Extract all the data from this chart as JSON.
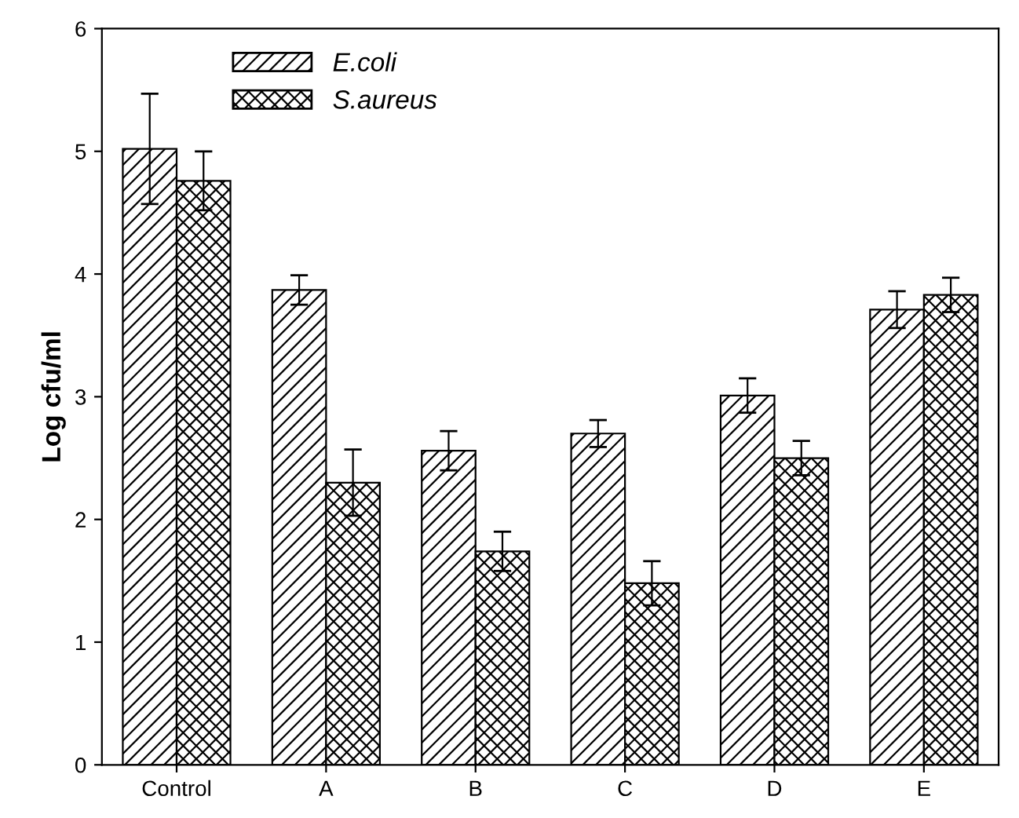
{
  "chart_data": {
    "type": "bar",
    "ylabel": "Log cfu/ml",
    "categories": [
      "Control",
      "A",
      "B",
      "C",
      "D",
      "E"
    ],
    "series": [
      {
        "name": "E.coli",
        "color": "#000000",
        "values": [
          5.02,
          3.87,
          2.56,
          2.7,
          3.01,
          3.71
        ],
        "errors": [
          0.45,
          0.12,
          0.16,
          0.11,
          0.14,
          0.15
        ]
      },
      {
        "name": "S.aureus",
        "color": "#000000",
        "values": [
          4.76,
          2.3,
          1.74,
          1.48,
          2.5,
          3.83
        ],
        "errors": [
          0.24,
          0.27,
          0.16,
          0.18,
          0.14,
          0.14
        ]
      }
    ],
    "ylim": [
      0,
      6
    ],
    "yticks": [
      0,
      1,
      2,
      3,
      4,
      5,
      6
    ],
    "grid": false,
    "legend": "top left"
  }
}
